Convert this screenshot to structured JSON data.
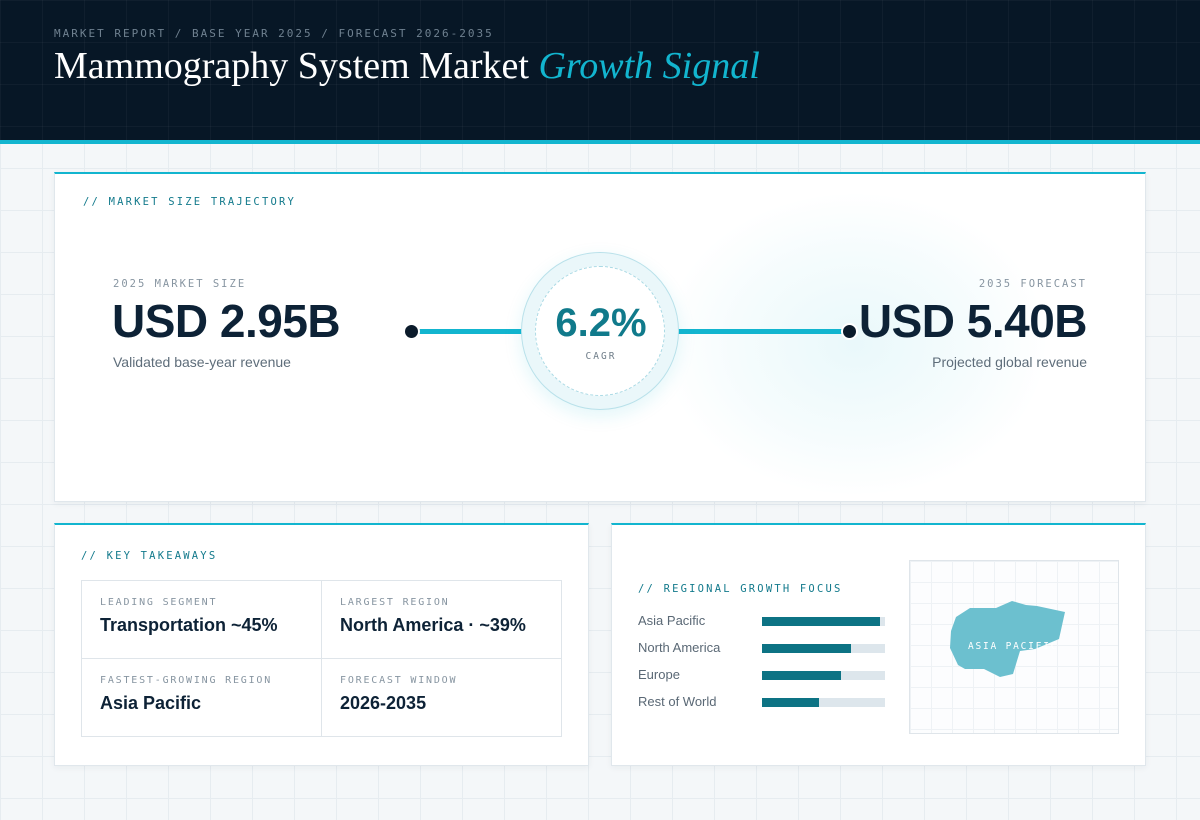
{
  "header": {
    "eyebrow": "MARKET REPORT / BASE YEAR 2025 / FORECAST 2026-2035",
    "title_main": "Mammography System Market",
    "title_accent": "Growth Signal"
  },
  "trajectory": {
    "section_label": "// MARKET SIZE TRAJECTORY",
    "start": {
      "label": "2025 MARKET SIZE",
      "value": "USD 2.95B",
      "caption": "Validated base-year revenue"
    },
    "cagr": {
      "value": "6.2%",
      "label": "CAGR"
    },
    "end": {
      "label": "2035 FORECAST",
      "value": "USD 5.40B",
      "caption": "Projected global revenue"
    }
  },
  "takeaways": {
    "section_label": "// KEY TAKEAWAYS",
    "items": [
      {
        "label": "LEADING SEGMENT",
        "value": "Transportation ~45%"
      },
      {
        "label": "LARGEST REGION",
        "value": "North America · ~39%"
      },
      {
        "label": "FASTEST-GROWING REGION",
        "value": "Asia Pacific"
      },
      {
        "label": "FORECAST WINDOW",
        "value": "2026-2035"
      }
    ]
  },
  "regional": {
    "section_label": "// REGIONAL GROWTH FOCUS",
    "bars": [
      {
        "name": "Asia Pacific",
        "fill": 0.96
      },
      {
        "name": "North America",
        "fill": 0.72
      },
      {
        "name": "Europe",
        "fill": 0.64
      },
      {
        "name": "Rest of World",
        "fill": 0.46
      }
    ],
    "map_label": "ASIA PACIFIC"
  },
  "colors": {
    "accent": "#12b5cf",
    "accent_dark": "#0d7384",
    "header_bg": "#071726",
    "text_dark": "#0d2236"
  }
}
